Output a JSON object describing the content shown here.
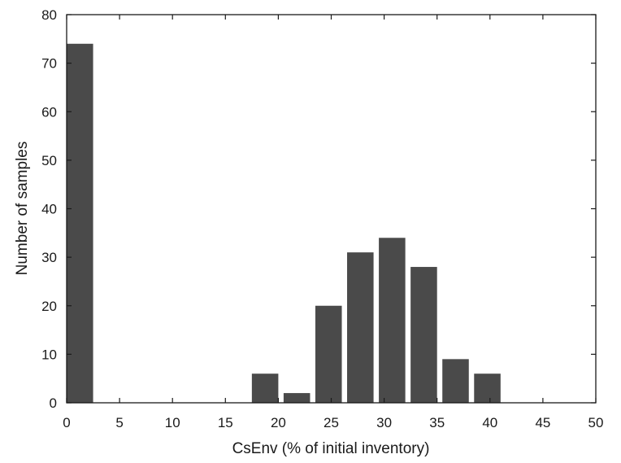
{
  "chart_data": {
    "type": "bar",
    "title": "",
    "xlabel": "CsEnv (% of initial inventory)",
    "ylabel": "Number of samples",
    "xlim": [
      0,
      50
    ],
    "ylim": [
      0,
      80
    ],
    "xticks": [
      0,
      5,
      10,
      15,
      20,
      25,
      30,
      35,
      40,
      45,
      50
    ],
    "yticks": [
      0,
      10,
      20,
      30,
      40,
      50,
      60,
      70,
      80
    ],
    "bar_width": 2.5,
    "bars": [
      {
        "x": 1.25,
        "value": 74
      },
      {
        "x": 18.75,
        "value": 6
      },
      {
        "x": 21.75,
        "value": 2
      },
      {
        "x": 24.75,
        "value": 20
      },
      {
        "x": 27.75,
        "value": 31
      },
      {
        "x": 30.75,
        "value": 34
      },
      {
        "x": 33.75,
        "value": 28
      },
      {
        "x": 36.75,
        "value": 9
      },
      {
        "x": 39.75,
        "value": 6
      }
    ],
    "grid": false,
    "legend": "none",
    "bar_color": "#4a4a4a"
  }
}
